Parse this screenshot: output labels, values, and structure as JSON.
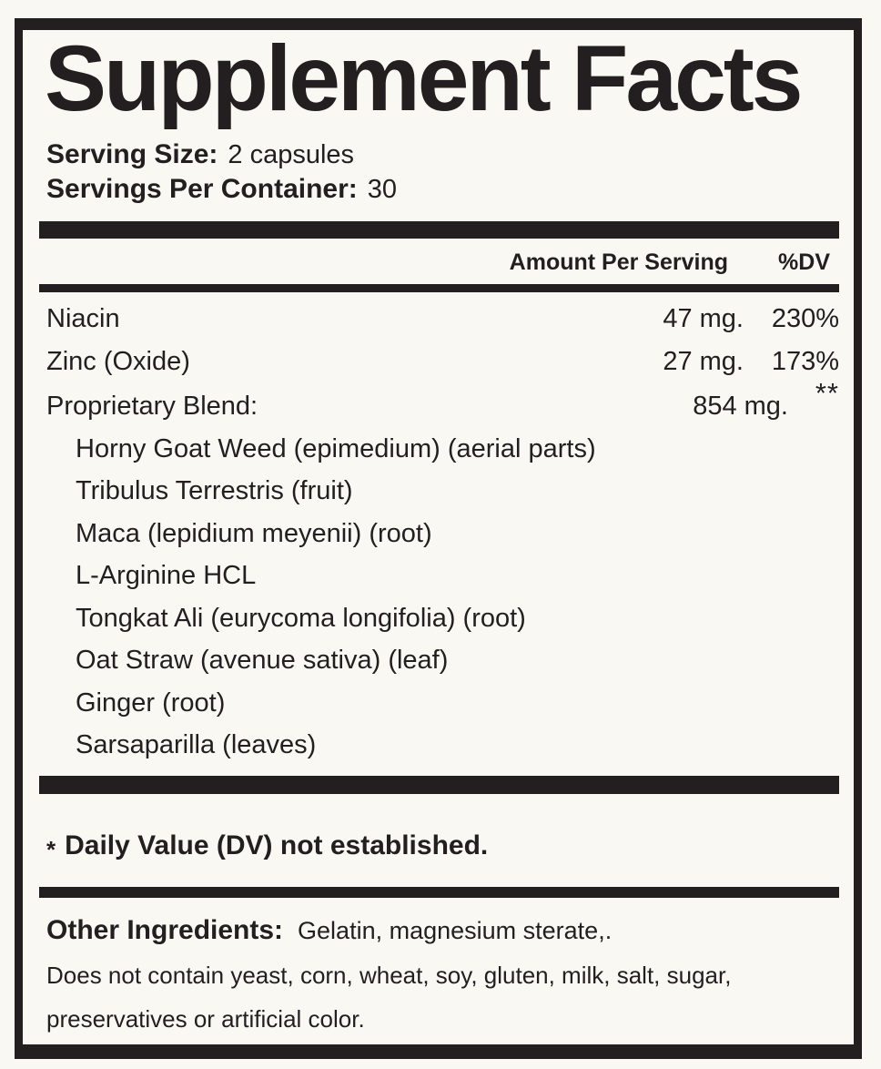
{
  "label": {
    "title": "Supplement Facts",
    "serving_size_label": "Serving Size:",
    "serving_size_value": "2 capsules",
    "servings_per_container_label": "Servings Per Container:",
    "servings_per_container_value": "30",
    "columns": {
      "amount_header": "Amount Per Serving",
      "dv_header": "%DV"
    },
    "rows": [
      {
        "name": "Niacin",
        "amount": "47 mg.",
        "dv": "230%"
      },
      {
        "name": "Zinc (Oxide)",
        "amount": "27 mg.",
        "dv": "173%"
      },
      {
        "name": "Proprietary Blend:",
        "amount": "854 mg.",
        "dv": "**"
      }
    ],
    "blend_items": [
      "Horny Goat Weed (epimedium) (aerial parts)",
      "Tribulus Terrestris (fruit)",
      "Maca (lepidium meyenii) (root)",
      "L-Arginine HCL",
      "Tongkat Ali (eurycoma longifolia) (root)",
      "Oat Straw (avenue sativa) (leaf)",
      "Ginger (root)",
      "Sarsaparilla (leaves)"
    ],
    "footnote_star": "*",
    "footnote_text": "Daily Value (DV) not established.",
    "other_ingredients_label": "Other Ingredients:",
    "other_ingredients_value": "Gelatin, magnesium sterate,.",
    "disclaimer_line1": "Does not contain yeast, corn, wheat, soy, gluten, milk, salt, sugar,",
    "disclaimer_line2": "preservatives or artificial color.",
    "colors": {
      "ink": "#231f20",
      "paper": "#f9f8f3"
    }
  }
}
